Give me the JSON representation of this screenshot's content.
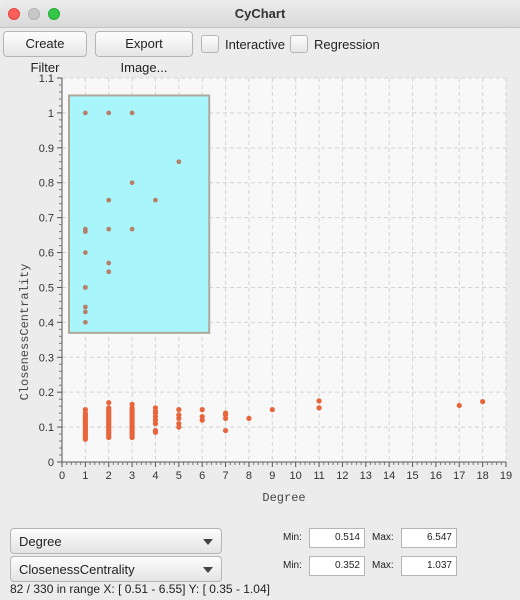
{
  "window": {
    "title": "CyChart"
  },
  "toolbar": {
    "create_filter_label": "Create Filter",
    "export_image_label": "Export Image...",
    "interactive_label": "Interactive",
    "regression_label": "Regression"
  },
  "chart_data": {
    "type": "scatter",
    "xlabel": "Degree",
    "ylabel": "ClosenessCentrality",
    "xlim": [
      0,
      19
    ],
    "ylim": [
      0,
      1.1
    ],
    "x_ticks": [
      0,
      1,
      2,
      3,
      4,
      5,
      6,
      7,
      8,
      9,
      10,
      11,
      12,
      13,
      14,
      15,
      16,
      17,
      18,
      19
    ],
    "y_ticks": [
      0,
      0.1,
      0.2,
      0.3,
      0.4,
      0.5,
      0.6,
      0.7,
      0.8,
      0.9,
      1,
      1.1
    ],
    "grid": true,
    "point_color": "#e8643a",
    "selection": {
      "x": [
        0.3,
        6.3
      ],
      "y": [
        0.37,
        1.05
      ],
      "fill": "#a8f6fb",
      "stroke": "#b0a89c"
    },
    "points": [
      [
        1,
        1.0
      ],
      [
        2,
        1.0
      ],
      [
        3,
        1.0
      ],
      [
        5,
        0.86
      ],
      [
        3,
        0.8
      ],
      [
        2,
        0.75
      ],
      [
        4,
        0.75
      ],
      [
        1,
        0.667
      ],
      [
        1,
        0.66
      ],
      [
        2,
        0.667
      ],
      [
        3,
        0.667
      ],
      [
        1,
        0.6
      ],
      [
        2,
        0.57
      ],
      [
        2,
        0.545
      ],
      [
        1,
        0.5
      ],
      [
        1,
        0.5
      ],
      [
        1,
        0.444
      ],
      [
        1,
        0.43
      ],
      [
        1,
        0.4
      ],
      [
        1,
        0.15
      ],
      [
        1,
        0.14
      ],
      [
        1,
        0.135
      ],
      [
        1,
        0.13
      ],
      [
        1,
        0.125
      ],
      [
        1,
        0.12
      ],
      [
        1,
        0.115
      ],
      [
        1,
        0.11
      ],
      [
        1,
        0.105
      ],
      [
        1,
        0.1
      ],
      [
        1,
        0.095
      ],
      [
        1,
        0.09
      ],
      [
        1,
        0.085
      ],
      [
        1,
        0.08
      ],
      [
        1,
        0.075
      ],
      [
        1,
        0.07
      ],
      [
        1,
        0.065
      ],
      [
        2,
        0.17
      ],
      [
        2,
        0.155
      ],
      [
        2,
        0.15
      ],
      [
        2,
        0.145
      ],
      [
        2,
        0.14
      ],
      [
        2,
        0.135
      ],
      [
        2,
        0.13
      ],
      [
        2,
        0.125
      ],
      [
        2,
        0.12
      ],
      [
        2,
        0.115
      ],
      [
        2,
        0.11
      ],
      [
        2,
        0.105
      ],
      [
        2,
        0.1
      ],
      [
        2,
        0.095
      ],
      [
        2,
        0.09
      ],
      [
        2,
        0.085
      ],
      [
        2,
        0.08
      ],
      [
        2,
        0.075
      ],
      [
        2,
        0.07
      ],
      [
        3,
        0.165
      ],
      [
        3,
        0.155
      ],
      [
        3,
        0.15
      ],
      [
        3,
        0.145
      ],
      [
        3,
        0.14
      ],
      [
        3,
        0.135
      ],
      [
        3,
        0.13
      ],
      [
        3,
        0.125
      ],
      [
        3,
        0.12
      ],
      [
        3,
        0.115
      ],
      [
        3,
        0.11
      ],
      [
        3,
        0.105
      ],
      [
        3,
        0.1
      ],
      [
        3,
        0.095
      ],
      [
        3,
        0.09
      ],
      [
        3,
        0.085
      ],
      [
        3,
        0.08
      ],
      [
        3,
        0.075
      ],
      [
        3,
        0.07
      ],
      [
        4,
        0.155
      ],
      [
        4,
        0.145
      ],
      [
        4,
        0.14
      ],
      [
        4,
        0.13
      ],
      [
        4,
        0.12
      ],
      [
        4,
        0.11
      ],
      [
        4,
        0.09
      ],
      [
        4,
        0.085
      ],
      [
        5,
        0.15
      ],
      [
        5,
        0.135
      ],
      [
        5,
        0.125
      ],
      [
        5,
        0.11
      ],
      [
        5,
        0.1
      ],
      [
        6,
        0.15
      ],
      [
        6,
        0.13
      ],
      [
        6,
        0.12
      ],
      [
        7,
        0.14
      ],
      [
        7,
        0.135
      ],
      [
        7,
        0.125
      ],
      [
        7,
        0.09
      ],
      [
        8,
        0.125
      ],
      [
        9,
        0.15
      ],
      [
        11,
        0.175
      ],
      [
        11,
        0.155
      ],
      [
        17,
        0.162
      ],
      [
        18,
        0.173
      ]
    ]
  },
  "bottom": {
    "x_column": "Degree",
    "y_column": "ClosenessCentrality",
    "min_label": "Min:",
    "max_label": "Max:",
    "x_min": "0.514",
    "x_max": "6.547",
    "y_min": "0.352",
    "y_max": "1.037",
    "status": "82 / 330 in range X: [ 0.51 - 6.55] Y: [ 0.35 - 1.04]"
  }
}
